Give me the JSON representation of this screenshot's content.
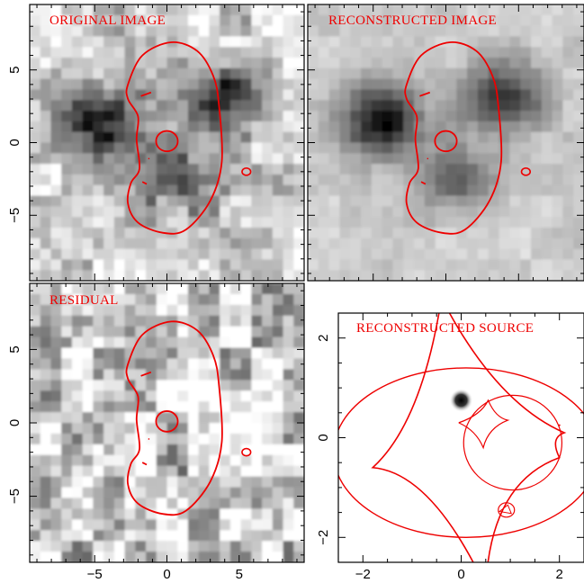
{
  "colors": {
    "curve": "#ee0000",
    "axis": "#000000",
    "background": "#ffffff"
  },
  "chart_data": [
    {
      "type": "heatmap",
      "title": "ORIGINAL IMAGE",
      "panel": "top-left",
      "xlim": [
        -9.5,
        9.5
      ],
      "ylim": [
        -9.5,
        9.5
      ],
      "xticks": [],
      "yticks": [
        "5",
        "0",
        "−5"
      ],
      "colormap": "inverted-grey",
      "sources": [
        {
          "x": -4.6,
          "y": 1.6,
          "amp": 1.0
        },
        {
          "x": 4.0,
          "y": 3.2,
          "amp": 0.8
        },
        {
          "x": 0.9,
          "y": -2.6,
          "amp": 0.55
        }
      ],
      "contours": "critical-curves"
    },
    {
      "type": "heatmap",
      "title": "RECONSTRUCTED IMAGE",
      "panel": "top-right",
      "xlim": [
        -9.5,
        9.5
      ],
      "ylim": [
        -9.5,
        9.5
      ],
      "xticks": [],
      "yticks": [],
      "colormap": "inverted-grey",
      "sources": [
        {
          "x": -4.4,
          "y": 1.5,
          "amp": 1.0
        },
        {
          "x": 4.0,
          "y": 3.1,
          "amp": 0.85
        },
        {
          "x": 0.9,
          "y": -2.5,
          "amp": 0.55
        }
      ],
      "contours": "critical-curves"
    },
    {
      "type": "heatmap",
      "title": "RESIDUAL",
      "panel": "bottom-left",
      "xlim": [
        -9.5,
        9.5
      ],
      "ylim": [
        -9.5,
        9.5
      ],
      "xticks": [
        "−5",
        "0",
        "5"
      ],
      "yticks": [
        "5",
        "0",
        "−5"
      ],
      "colormap": "inverted-grey",
      "contours": "critical-curves"
    },
    {
      "type": "scatter",
      "title": "RECONSTRUCTED SOURCE",
      "panel": "bottom-right",
      "xlim": [
        -2.5,
        2.5
      ],
      "ylim": [
        -2.5,
        2.5
      ],
      "xticks": [
        "−2",
        "0",
        "2"
      ],
      "yticks": [
        "2",
        "0",
        "−2"
      ],
      "source_blob": {
        "x": 0.0,
        "y": 0.75
      },
      "caustics": "astroid-and-ellipses"
    }
  ]
}
